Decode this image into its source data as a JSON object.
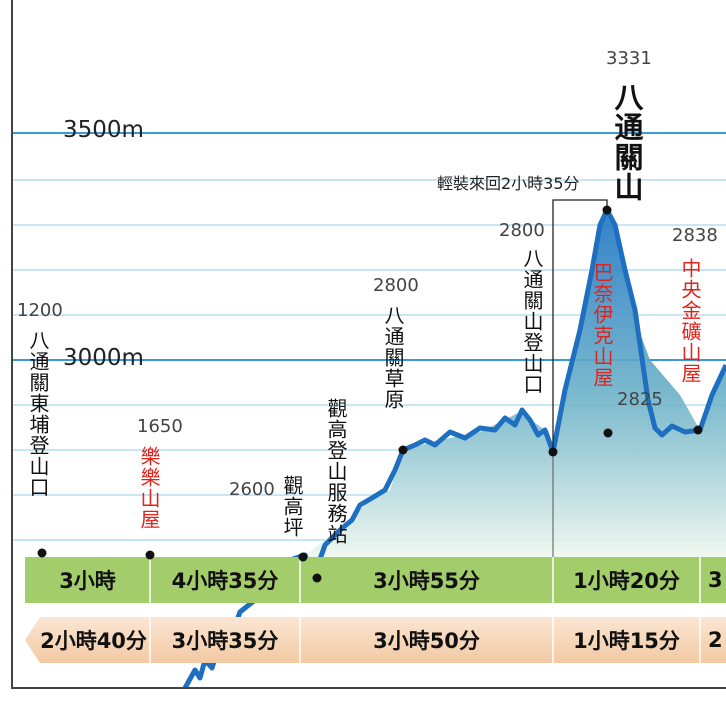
{
  "axis": {
    "labels": [
      "3500m",
      "3000m"
    ]
  },
  "points": [
    {
      "elevation": "1200",
      "name": "八通關東埔登山口"
    },
    {
      "elevation": "1650",
      "name": "樂樂山屋"
    },
    {
      "elevation": "2600",
      "name": "觀高坪"
    },
    {
      "name": "觀高登山服務站"
    },
    {
      "elevation": "2800",
      "name": "八通關草原"
    },
    {
      "elevation": "2800",
      "name": "八通關山登山口"
    },
    {
      "elevation": "3331",
      "name": "八通關山"
    },
    {
      "elevation": "2825",
      "name": "巴奈伊克山屋"
    },
    {
      "elevation": "2838",
      "name": "中央金礦山屋"
    }
  ],
  "side_trip": "輕裝來回2小時35分",
  "times": {
    "uphill": [
      "3小時",
      "4小時35分",
      "3小時55分",
      "1小時20分",
      "3"
    ],
    "downhill": [
      "2小時40分",
      "3小時35分",
      "3小時50分",
      "1小時15分",
      "2"
    ]
  }
}
